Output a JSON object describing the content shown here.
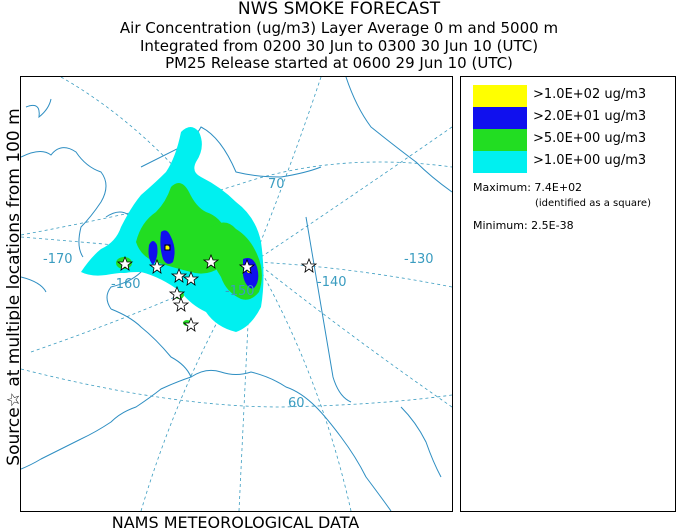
{
  "header": {
    "title": "NWS SMOKE FORECAST",
    "line1": "Air Concentration (ug/m3) Layer Average    0 m and  5000 m",
    "line2": "Integrated from 0200 30 Jun to 0300 30 Jun 10 (UTC)",
    "line3": "PM25 Release started at 0600 29 Jun 10 (UTC)"
  },
  "side_label": "Source☆  at multiple locations   from   100 m",
  "footer": "NAMS METEOROLOGICAL DATA",
  "map": {
    "longitude_labels": [
      "-170",
      "-160",
      "-150",
      "-140",
      "-130"
    ],
    "latitude_labels": [
      "70",
      "60"
    ],
    "colors": {
      "coastline": "#2e8ec2",
      "graticule": "#3a9cc0",
      "level_100": "#ffff00",
      "level_20": "#1010ee",
      "level_5": "#22dd22",
      "level_1": "#00f0f0"
    }
  },
  "legend": {
    "entries": [
      {
        "color": "#ffff00",
        "label": ">1.0E+02 ug/m3"
      },
      {
        "color": "#1010ee",
        "label": ">2.0E+01 ug/m3"
      },
      {
        "color": "#22dd22",
        "label": ">5.0E+00 ug/m3"
      },
      {
        "color": "#00f0f0",
        "label": ">1.0E+00 ug/m3"
      }
    ],
    "maximum": "Maximum: 7.4E+02",
    "maximum_note": "(identified as a square)",
    "minimum": "Minimum: 2.5E-38"
  }
}
